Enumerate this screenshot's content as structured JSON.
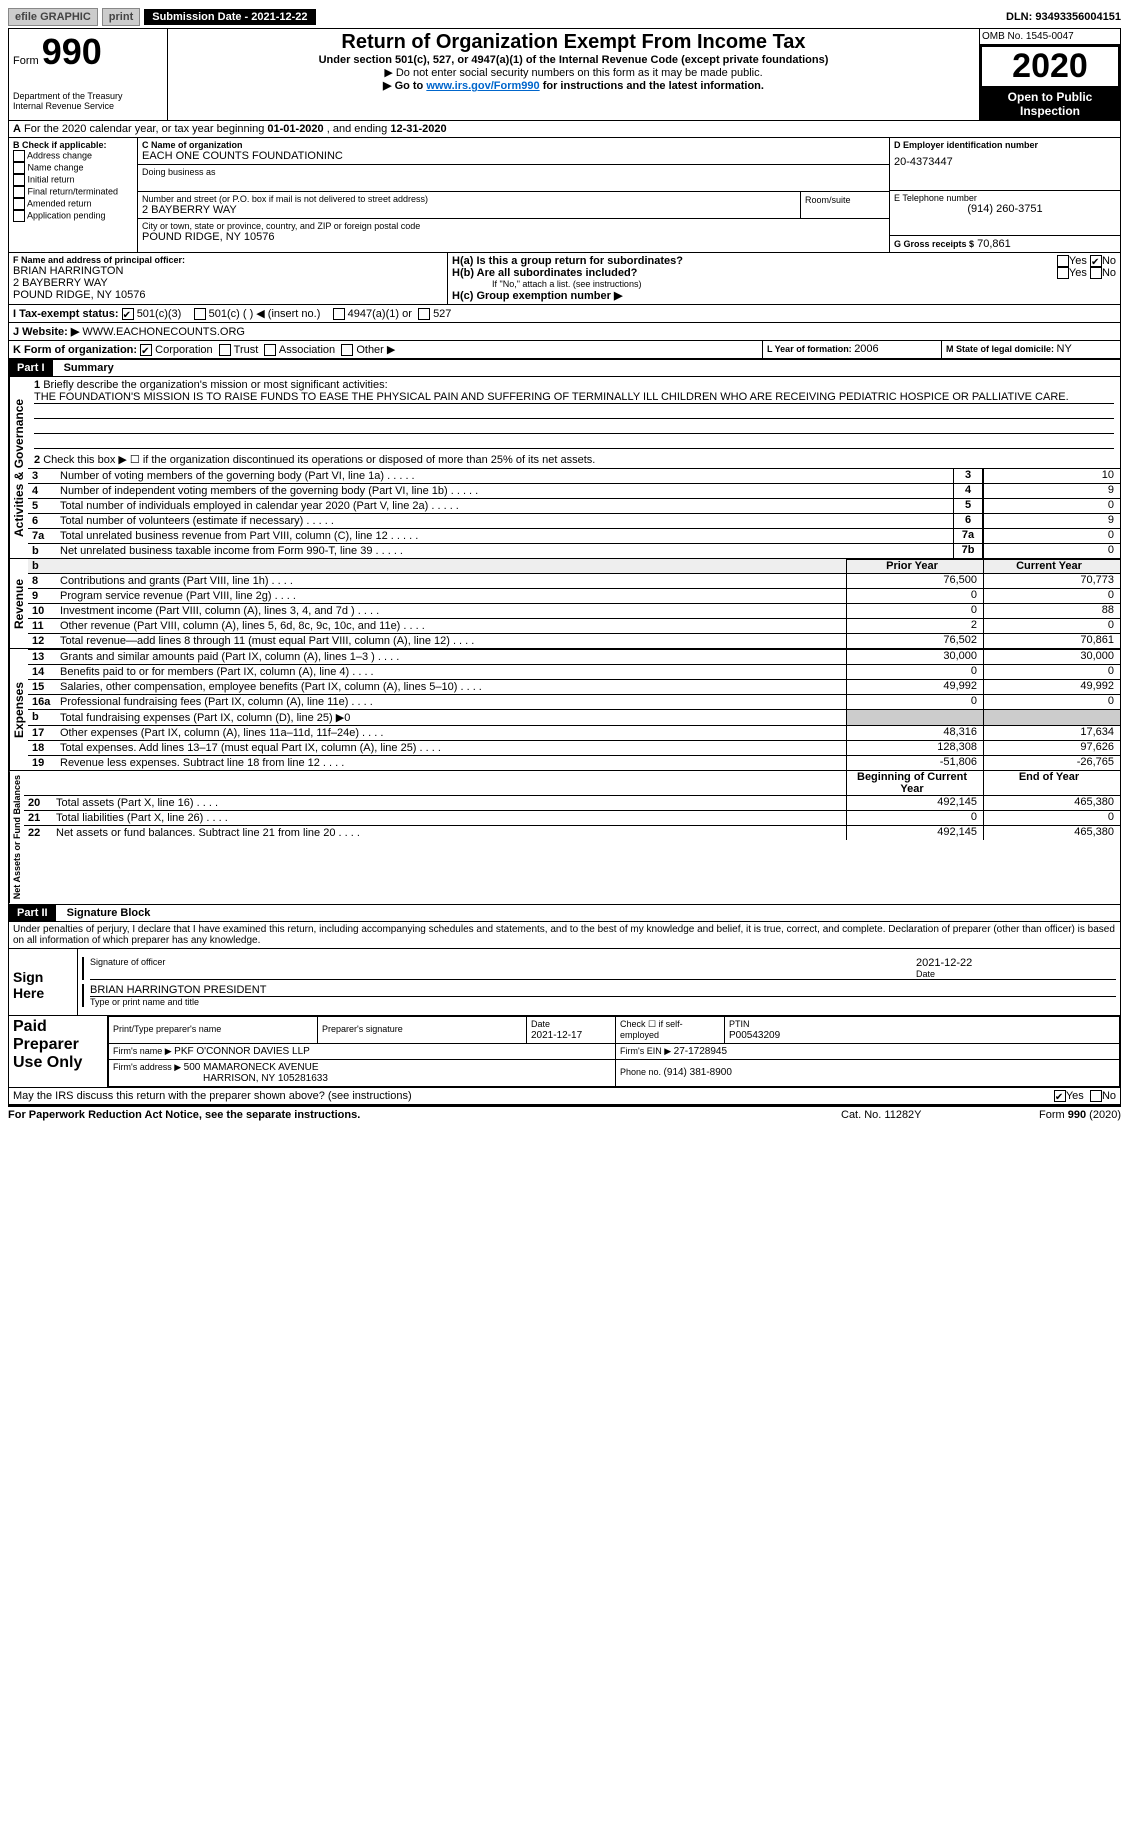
{
  "topbar": {
    "efile": "efile GRAPHIC",
    "print": "print",
    "sub_label": "Submission Date - 2021-12-22",
    "dln": "DLN: 93493356004151"
  },
  "header": {
    "form_prefix": "Form",
    "form_num": "990",
    "dept": "Department of the Treasury",
    "irs": "Internal Revenue Service",
    "title": "Return of Organization Exempt From Income Tax",
    "subtitle": "Under section 501(c), 527, or 4947(a)(1) of the Internal Revenue Code (except private foundations)",
    "warn": "▶ Do not enter social security numbers on this form as it may be made public.",
    "goto": "▶ Go to ",
    "goto_link": "www.irs.gov/Form990",
    "goto_tail": " for instructions and the latest information.",
    "omb": "OMB No. 1545-0047",
    "year": "2020",
    "open": "Open to Public Inspection"
  },
  "lineA": {
    "prefix": "A",
    "text": "For the 2020 calendar year, or tax year beginning ",
    "begin": "01-01-2020",
    "mid": "  , and ending ",
    "end": "12-31-2020"
  },
  "boxB": {
    "label": "B Check if applicable:",
    "opts": [
      "Address change",
      "Name change",
      "Initial return",
      "Final return/terminated",
      "Amended return",
      "Application pending"
    ]
  },
  "boxC": {
    "name_lbl": "C Name of organization",
    "name": "EACH ONE COUNTS FOUNDATIONINC",
    "dba_lbl": "Doing business as",
    "addr_lbl": "Number and street (or P.O. box if mail is not delivered to street address)",
    "room_lbl": "Room/suite",
    "addr": "2 BAYBERRY WAY",
    "city_lbl": "City or town, state or province, country, and ZIP or foreign postal code",
    "city": "POUND RIDGE, NY  10576"
  },
  "boxD": {
    "lbl": "D Employer identification number",
    "val": "20-4373447"
  },
  "boxE": {
    "lbl": "E Telephone number",
    "val": "(914) 260-3751"
  },
  "boxG": {
    "lbl": "G Gross receipts $",
    "val": "70,861"
  },
  "boxF": {
    "lbl": "F  Name and address of principal officer:",
    "name": "BRIAN HARRINGTON",
    "addr1": "2 BAYBERRY WAY",
    "addr2": "POUND RIDGE, NY  10576"
  },
  "boxH": {
    "a": "H(a)  Is this a group return for subordinates?",
    "b": "H(b)  Are all subordinates included?",
    "note": "If \"No,\" attach a list. (see instructions)",
    "c": "H(c)  Group exemption number ▶"
  },
  "lineI": {
    "lbl": "I    Tax-exempt status:",
    "o1": "501(c)(3)",
    "o2": "501(c) (  ) ◀ (insert no.)",
    "o3": "4947(a)(1) or",
    "o4": "527"
  },
  "lineJ": {
    "lbl": "J   Website: ▶",
    "val": " WWW.EACHONECOUNTS.ORG"
  },
  "lineK": {
    "lbl": "K Form of organization:",
    "o1": "Corporation",
    "o2": "Trust",
    "o3": "Association",
    "o4": "Other ▶"
  },
  "lineL": {
    "lbl": "L Year of formation: ",
    "val": "2006"
  },
  "lineM": {
    "lbl": "M State of legal domicile: ",
    "val": "NY"
  },
  "part1": {
    "hdr": "Part I",
    "title": "Summary",
    "l1": "Briefly describe the organization's mission or most significant activities:",
    "mission": "THE FOUNDATION'S MISSION IS TO RAISE FUNDS TO EASE THE PHYSICAL PAIN AND SUFFERING OF TERMINALLY ILL CHILDREN WHO ARE RECEIVING PEDIATRIC HOSPICE OR PALLIATIVE CARE.",
    "l2": "Check this box ▶ ☐  if the organization discontinued its operations or disposed of more than 25% of its net assets.",
    "rows_gov": [
      {
        "n": "3",
        "t": "Number of voting members of the governing body (Part VI, line 1a)",
        "b": "3",
        "v": "10"
      },
      {
        "n": "4",
        "t": "Number of independent voting members of the governing body (Part VI, line 1b)",
        "b": "4",
        "v": "9"
      },
      {
        "n": "5",
        "t": "Total number of individuals employed in calendar year 2020 (Part V, line 2a)",
        "b": "5",
        "v": "0"
      },
      {
        "n": "6",
        "t": "Total number of volunteers (estimate if necessary)",
        "b": "6",
        "v": "9"
      },
      {
        "n": "7a",
        "t": "Total unrelated business revenue from Part VIII, column (C), line 12",
        "b": "7a",
        "v": "0"
      },
      {
        "n": "b",
        "t": "Net unrelated business taxable income from Form 990-T, line 39",
        "b": "7b",
        "v": "0"
      }
    ],
    "col_py": "Prior Year",
    "col_cy": "Current Year",
    "rev_rows": [
      {
        "n": "8",
        "t": "Contributions and grants (Part VIII, line 1h)",
        "py": "76,500",
        "cy": "70,773"
      },
      {
        "n": "9",
        "t": "Program service revenue (Part VIII, line 2g)",
        "py": "0",
        "cy": "0"
      },
      {
        "n": "10",
        "t": "Investment income (Part VIII, column (A), lines 3, 4, and 7d )",
        "py": "0",
        "cy": "88"
      },
      {
        "n": "11",
        "t": "Other revenue (Part VIII, column (A), lines 5, 6d, 8c, 9c, 10c, and 11e)",
        "py": "2",
        "cy": "0"
      },
      {
        "n": "12",
        "t": "Total revenue—add lines 8 through 11 (must equal Part VIII, column (A), line 12)",
        "py": "76,502",
        "cy": "70,861"
      }
    ],
    "exp_rows": [
      {
        "n": "13",
        "t": "Grants and similar amounts paid (Part IX, column (A), lines 1–3 )",
        "py": "30,000",
        "cy": "30,000"
      },
      {
        "n": "14",
        "t": "Benefits paid to or for members (Part IX, column (A), line 4)",
        "py": "0",
        "cy": "0"
      },
      {
        "n": "15",
        "t": "Salaries, other compensation, employee benefits (Part IX, column (A), lines 5–10)",
        "py": "49,992",
        "cy": "49,992"
      },
      {
        "n": "16a",
        "t": "Professional fundraising fees (Part IX, column (A), line 11e)",
        "py": "0",
        "cy": "0"
      },
      {
        "n": "b",
        "t": "Total fundraising expenses (Part IX, column (D), line 25) ▶0",
        "py": "",
        "cy": "",
        "shade": true
      },
      {
        "n": "17",
        "t": "Other expenses (Part IX, column (A), lines 11a–11d, 11f–24e)",
        "py": "48,316",
        "cy": "17,634"
      },
      {
        "n": "18",
        "t": "Total expenses. Add lines 13–17 (must equal Part IX, column (A), line 25)",
        "py": "128,308",
        "cy": "97,626"
      },
      {
        "n": "19",
        "t": "Revenue less expenses. Subtract line 18 from line 12",
        "py": "-51,806",
        "cy": "-26,765"
      }
    ],
    "col_by": "Beginning of Current Year",
    "col_ey": "End of Year",
    "na_rows": [
      {
        "n": "20",
        "t": "Total assets (Part X, line 16)",
        "py": "492,145",
        "cy": "465,380"
      },
      {
        "n": "21",
        "t": "Total liabilities (Part X, line 26)",
        "py": "0",
        "cy": "0"
      },
      {
        "n": "22",
        "t": "Net assets or fund balances. Subtract line 21 from line 20",
        "py": "492,145",
        "cy": "465,380"
      }
    ],
    "side_gov": "Activities & Governance",
    "side_rev": "Revenue",
    "side_exp": "Expenses",
    "side_na": "Net Assets or Fund Balances"
  },
  "part2": {
    "hdr": "Part II",
    "title": "Signature Block",
    "decl": "Under penalties of perjury, I declare that I have examined this return, including accompanying schedules and statements, and to the best of my knowledge and belief, it is true, correct, and complete. Declaration of preparer (other than officer) is based on all information of which preparer has any knowledge.",
    "sign_here": "Sign Here",
    "sig_officer": "Signature of officer",
    "sig_date": "2021-12-22",
    "date_lbl": "Date",
    "officer_name": "BRIAN HARRINGTON  PRESIDENT",
    "type_lbl": "Type or print name and title",
    "paid": "Paid Preparer Use Only",
    "p_name_lbl": "Print/Type preparer's name",
    "p_sig_lbl": "Preparer's signature",
    "p_date_lbl": "Date",
    "p_date": "2021-12-17",
    "p_check": "Check ☐ if self-employed",
    "ptin_lbl": "PTIN",
    "ptin": "P00543209",
    "firm_name_lbl": "Firm's name    ▶ ",
    "firm_name": "PKF O'CONNOR DAVIES LLP",
    "firm_ein_lbl": "Firm's EIN ▶ ",
    "firm_ein": "27-1728945",
    "firm_addr_lbl": "Firm's address ▶ ",
    "firm_addr1": "500 MAMARONECK AVENUE",
    "firm_addr2": "HARRISON, NY  105281633",
    "phone_lbl": "Phone no. ",
    "phone": "(914) 381-8900",
    "discuss": "May the IRS discuss this return with the preparer shown above? (see instructions)"
  },
  "footer": {
    "pra": "For Paperwork Reduction Act Notice, see the separate instructions.",
    "cat": "Cat. No. 11282Y",
    "form": "Form 990 (2020)"
  },
  "yesno": {
    "yes": "Yes",
    "no": "No"
  }
}
